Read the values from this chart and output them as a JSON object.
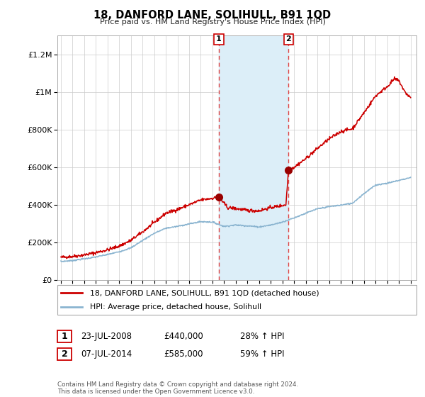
{
  "title": "18, DANFORD LANE, SOLIHULL, B91 1QD",
  "subtitle": "Price paid vs. HM Land Registry's House Price Index (HPI)",
  "ylabel_ticks": [
    "£0",
    "£200K",
    "£400K",
    "£600K",
    "£800K",
    "£1M",
    "£1.2M"
  ],
  "ytick_values": [
    0,
    200000,
    400000,
    600000,
    800000,
    1000000,
    1200000
  ],
  "ylim": [
    0,
    1300000
  ],
  "xlim_start": 1994.7,
  "xlim_end": 2025.5,
  "sale1_x": 2008.55,
  "sale1_y": 440000,
  "sale1_label": "1",
  "sale2_x": 2014.52,
  "sale2_y": 585000,
  "sale2_label": "2",
  "shade_x1": 2008.55,
  "shade_x2": 2014.52,
  "red_line_color": "#cc0000",
  "blue_line_color": "#8ab4d0",
  "marker_color": "#990000",
  "shade_color": "#dceef8",
  "vline_color": "#dd4444",
  "legend1_label": "18, DANFORD LANE, SOLIHULL, B91 1QD (detached house)",
  "legend2_label": "HPI: Average price, detached house, Solihull",
  "table_rows": [
    {
      "num": "1",
      "date": "23-JUL-2008",
      "price": "£440,000",
      "change": "28% ↑ HPI"
    },
    {
      "num": "2",
      "date": "07-JUL-2014",
      "price": "£585,000",
      "change": "59% ↑ HPI"
    }
  ],
  "footnote": "Contains HM Land Registry data © Crown copyright and database right 2024.\nThis data is licensed under the Open Government Licence v3.0.",
  "background_color": "#ffffff",
  "plot_bg_color": "#ffffff",
  "grid_color": "#cccccc"
}
